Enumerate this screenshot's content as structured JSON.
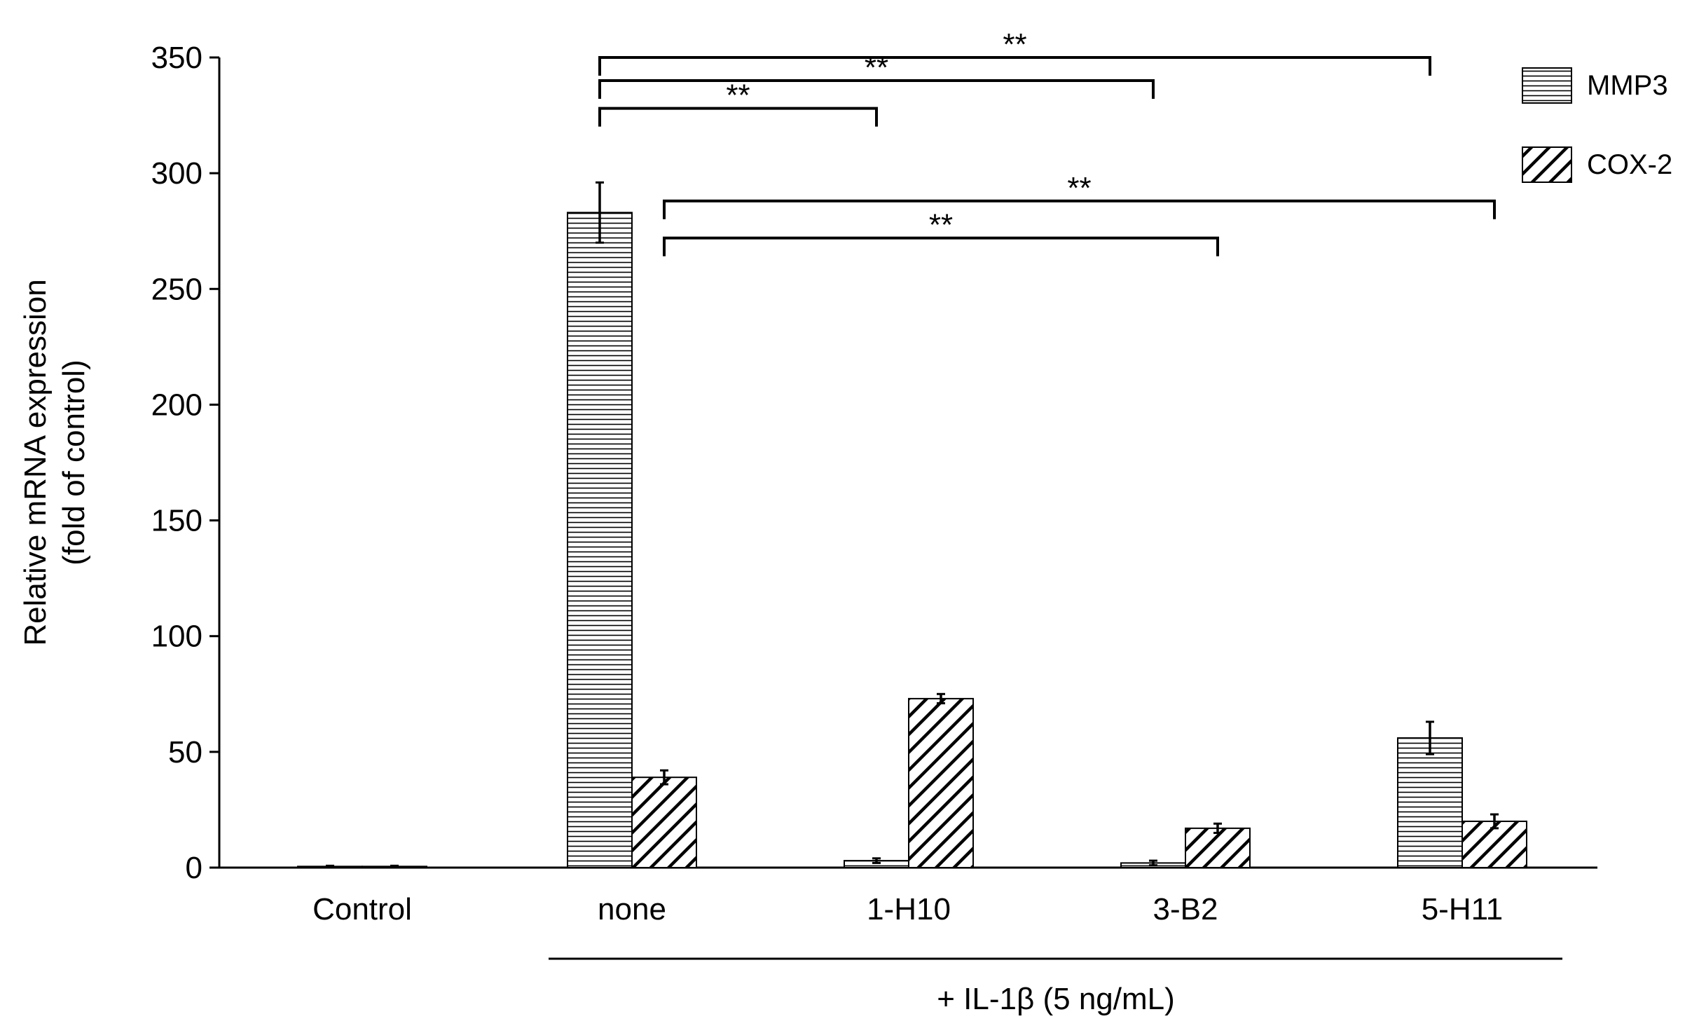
{
  "chart_data": {
    "type": "bar",
    "categories": [
      "Control",
      "none",
      "1-H10",
      "3-B2",
      "5-H11"
    ],
    "series": [
      {
        "name": "MMP3",
        "pattern": "horizontal-lines",
        "values": [
          0.5,
          283,
          3,
          2,
          56
        ],
        "errors": [
          0.3,
          13,
          1,
          1,
          7
        ]
      },
      {
        "name": "COX-2",
        "pattern": "diagonal-lines",
        "values": [
          0.5,
          39,
          73,
          17,
          20
        ],
        "errors": [
          0.3,
          3,
          2,
          2,
          3
        ]
      }
    ],
    "ylabel_line1": "Relative mRNA expression",
    "ylabel_line2": "(fold of control)",
    "ylim": [
      0,
      350
    ],
    "yticks": [
      "0",
      "50",
      "100",
      "150",
      "200",
      "250",
      "300",
      "350"
    ],
    "group_label": "+ IL-1β (5 ng/mL)",
    "legend_position": "top-right",
    "grid": false,
    "significance": [
      {
        "from_series": 0,
        "from_cat": 1,
        "to_series": 0,
        "to_cat": 4,
        "label": "**",
        "level": 350
      },
      {
        "from_series": 0,
        "from_cat": 1,
        "to_series": 0,
        "to_cat": 3,
        "label": "**",
        "level": 340
      },
      {
        "from_series": 0,
        "from_cat": 1,
        "to_series": 0,
        "to_cat": 2,
        "label": "**",
        "level": 328
      },
      {
        "from_series": 1,
        "from_cat": 1,
        "to_series": 1,
        "to_cat": 4,
        "label": "**",
        "level": 288
      },
      {
        "from_series": 1,
        "from_cat": 1,
        "to_series": 1,
        "to_cat": 3,
        "label": "**",
        "level": 272
      }
    ],
    "colors": {
      "bar_fill": "#ffffff",
      "stroke": "#000000",
      "axis": "#000000"
    }
  }
}
